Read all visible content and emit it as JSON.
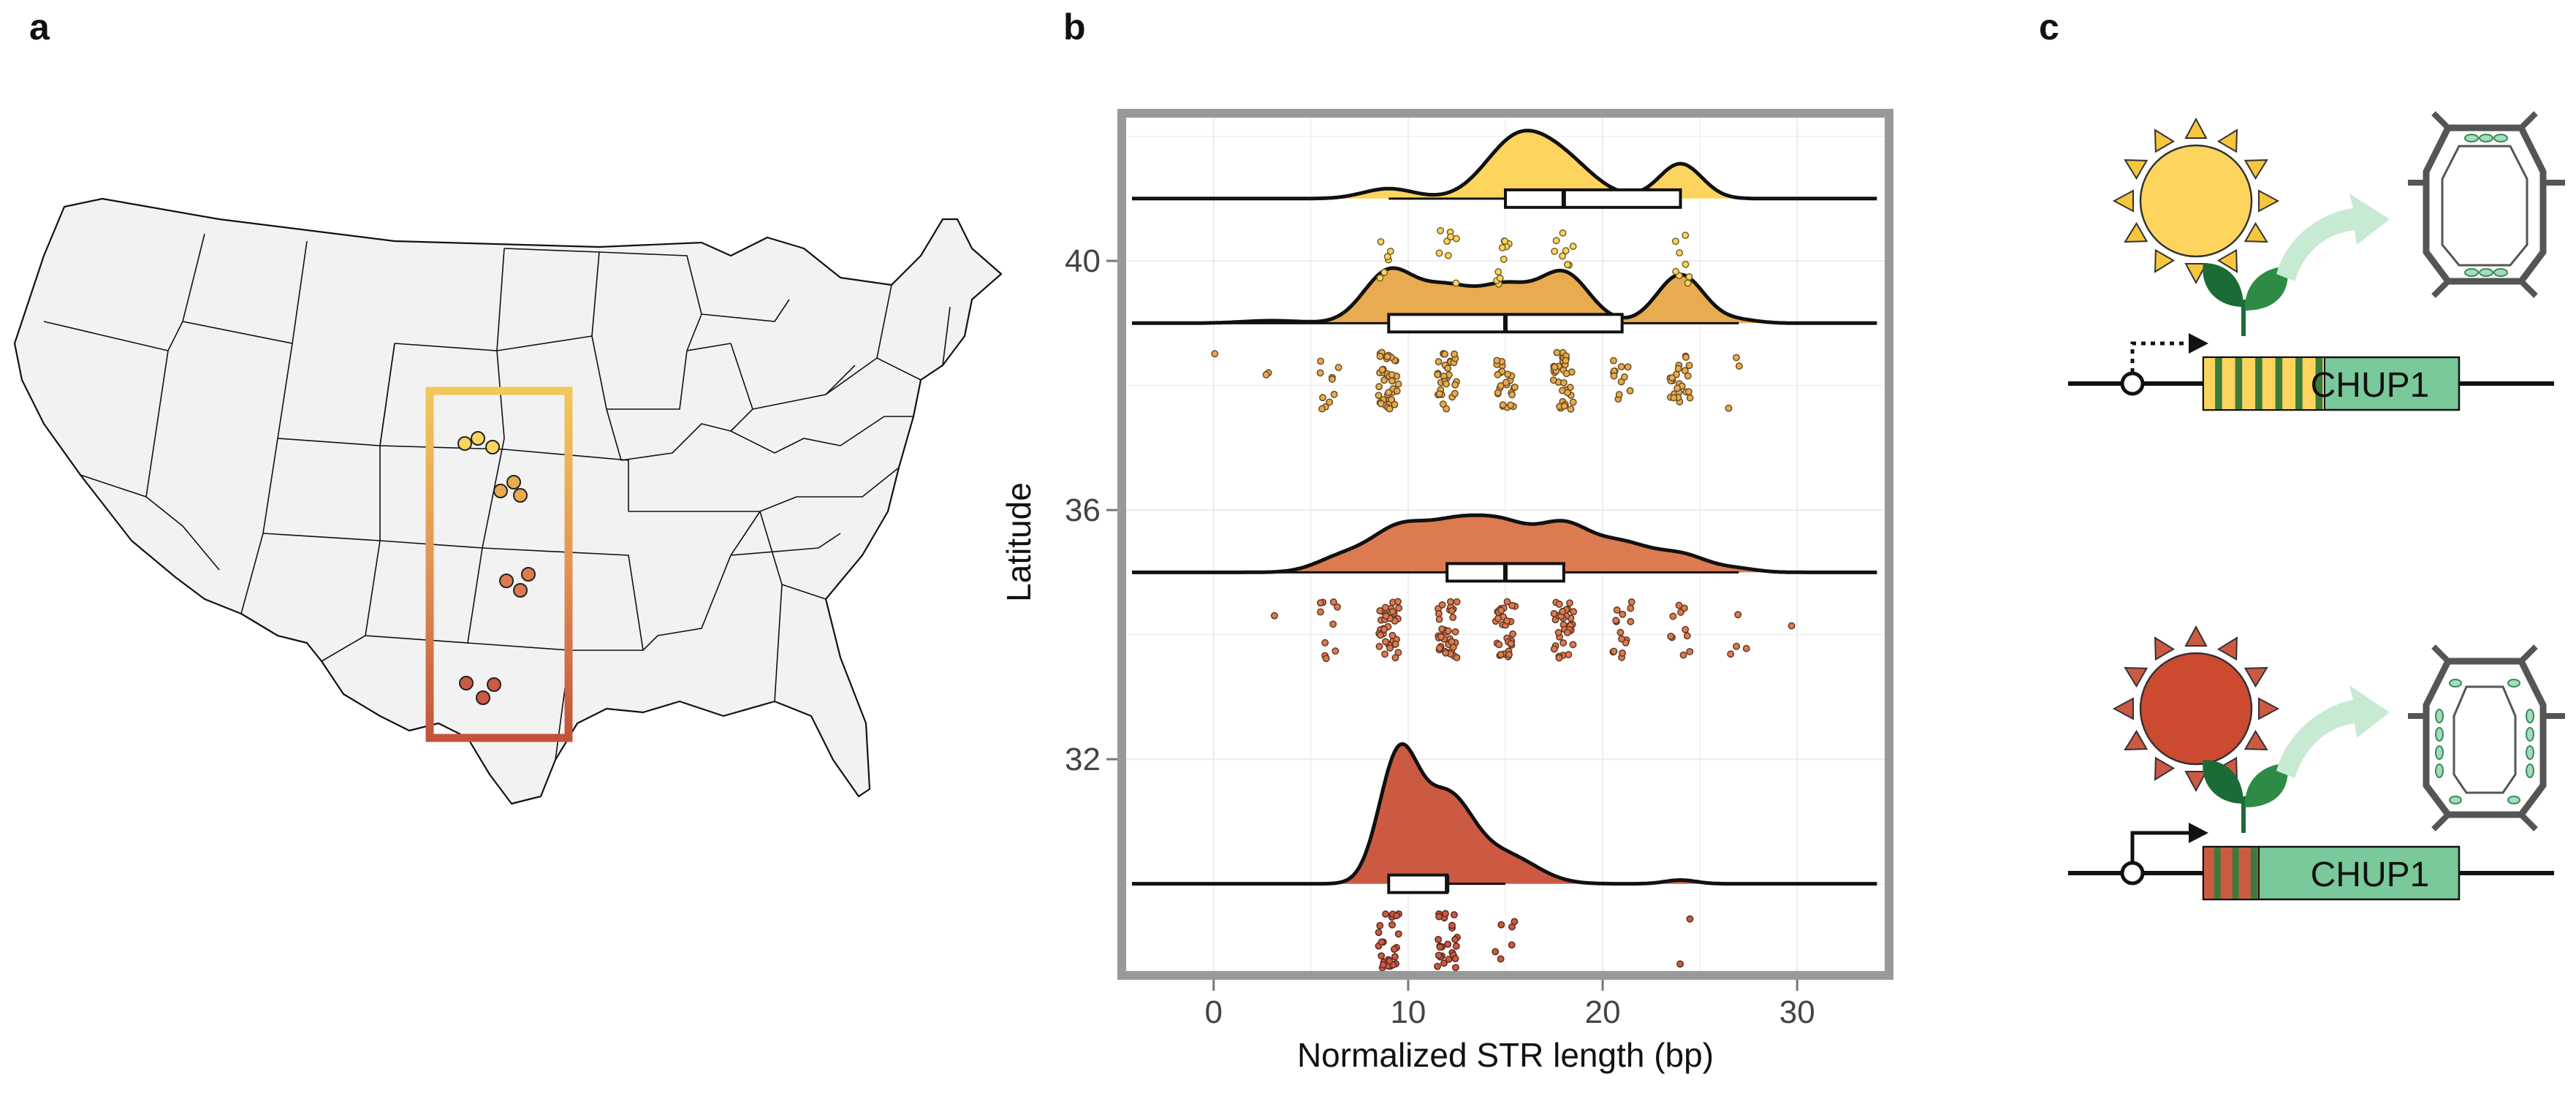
{
  "panels": {
    "a": "a",
    "b": "b",
    "c": "c"
  },
  "colors": {
    "lat40": "#fdd55e",
    "lat39": "#e9ab4f",
    "lat35": "#dc7b4f",
    "lat30": "#cc5a43",
    "gene_green": "#79c99a",
    "leaf_dark": "#1a6b35",
    "map_fill": "#f2f2f2"
  },
  "map": {
    "sites": [
      {
        "group": "lat40",
        "count": 3
      },
      {
        "group": "lat39",
        "count": 3
      },
      {
        "group": "lat35",
        "count": 3
      },
      {
        "group": "lat30",
        "count": 3
      }
    ]
  },
  "chart_data": {
    "type": "raincloud",
    "xlabel": "Normalized STR length (bp)",
    "ylabel": "Latitude",
    "xlim": [
      -4.5,
      34.5
    ],
    "ylim": [
      28.6,
      42.3
    ],
    "xticks": [
      0,
      10,
      20,
      30
    ],
    "xtick_labels": [
      "0",
      "10",
      "20",
      "30"
    ],
    "yticks": [
      32,
      36,
      40
    ],
    "ytick_labels": [
      "32",
      "36",
      "40"
    ],
    "grid": true,
    "series": [
      {
        "name": "lat40",
        "latitude": 41.0,
        "colorKey": "lat40",
        "density_peaks": [
          [
            9.0,
            0.16,
            1.3
          ],
          [
            15.5,
            0.88,
            1.6
          ],
          [
            18.0,
            0.55,
            1.6
          ],
          [
            24.0,
            0.56,
            1.1
          ]
        ],
        "box": {
          "q1": 15.0,
          "median": 18.0,
          "q3": 24.0,
          "whisker_lo": 9.0,
          "whisker_hi": 24.0
        },
        "points": [
          {
            "x": 9,
            "n": 6
          },
          {
            "x": 12,
            "n": 8
          },
          {
            "x": 15,
            "n": 10
          },
          {
            "x": 18,
            "n": 8
          },
          {
            "x": 24,
            "n": 8
          }
        ]
      },
      {
        "name": "lat39",
        "latitude": 39.0,
        "colorKey": "lat39",
        "density_peaks": [
          [
            9.0,
            0.82,
            1.3
          ],
          [
            12.0,
            0.55,
            1.4
          ],
          [
            15.0,
            0.55,
            1.3
          ],
          [
            18.0,
            0.8,
            1.3
          ],
          [
            24.0,
            0.78,
            1.2
          ],
          [
            3.0,
            0.04,
            1.5
          ],
          [
            27.0,
            0.05,
            1.0
          ]
        ],
        "box": {
          "q1": 9.0,
          "median": 15.0,
          "q3": 21.0,
          "whisker_lo": 0.0,
          "whisker_hi": 27.0
        },
        "points": [
          {
            "x": 0,
            "n": 1
          },
          {
            "x": 3,
            "n": 2
          },
          {
            "x": 6,
            "n": 10
          },
          {
            "x": 9,
            "n": 40
          },
          {
            "x": 12,
            "n": 30
          },
          {
            "x": 15,
            "n": 25
          },
          {
            "x": 18,
            "n": 35
          },
          {
            "x": 21,
            "n": 12
          },
          {
            "x": 24,
            "n": 25
          },
          {
            "x": 27,
            "n": 3
          }
        ]
      },
      {
        "name": "lat35",
        "latitude": 35.0,
        "colorKey": "lat35",
        "density_peaks": [
          [
            6.5,
            0.22,
            1.3
          ],
          [
            9.5,
            0.68,
            1.5
          ],
          [
            12.5,
            0.68,
            1.5
          ],
          [
            15.0,
            0.62,
            1.4
          ],
          [
            18.0,
            0.72,
            1.4
          ],
          [
            21.0,
            0.42,
            1.4
          ],
          [
            24.0,
            0.28,
            1.4
          ],
          [
            27.0,
            0.05,
            1.0
          ]
        ],
        "box": {
          "q1": 12.0,
          "median": 15.0,
          "q3": 18.0,
          "whisker_lo": 3.0,
          "whisker_hi": 27.0
        },
        "points": [
          {
            "x": 3,
            "n": 1
          },
          {
            "x": 6,
            "n": 10
          },
          {
            "x": 9,
            "n": 40
          },
          {
            "x": 12,
            "n": 35
          },
          {
            "x": 15,
            "n": 30
          },
          {
            "x": 18,
            "n": 35
          },
          {
            "x": 21,
            "n": 15
          },
          {
            "x": 24,
            "n": 10
          },
          {
            "x": 27,
            "n": 4
          },
          {
            "x": 30,
            "n": 1
          }
        ]
      },
      {
        "name": "lat30",
        "latitude": 30.0,
        "colorKey": "lat30",
        "density_peaks": [
          [
            9.5,
            2.0,
            1.0
          ],
          [
            12.0,
            1.35,
            1.3
          ],
          [
            15.0,
            0.45,
            1.6
          ],
          [
            24.0,
            0.06,
            0.8
          ]
        ],
        "box": {
          "q1": 9.0,
          "median": 12.0,
          "q3": 12.0,
          "whisker_lo": 9.0,
          "whisker_hi": 15.0
        },
        "points": [
          {
            "x": 9,
            "n": 25
          },
          {
            "x": 12,
            "n": 25
          },
          {
            "x": 15,
            "n": 6
          },
          {
            "x": 24,
            "n": 2
          }
        ]
      }
    ]
  },
  "panel_c": {
    "top": {
      "gene_label": "CHUP1",
      "stripes": 6,
      "promoter": "dashed"
    },
    "bottom": {
      "gene_label": "CHUP1",
      "stripes": 3,
      "promoter": "solid"
    }
  }
}
